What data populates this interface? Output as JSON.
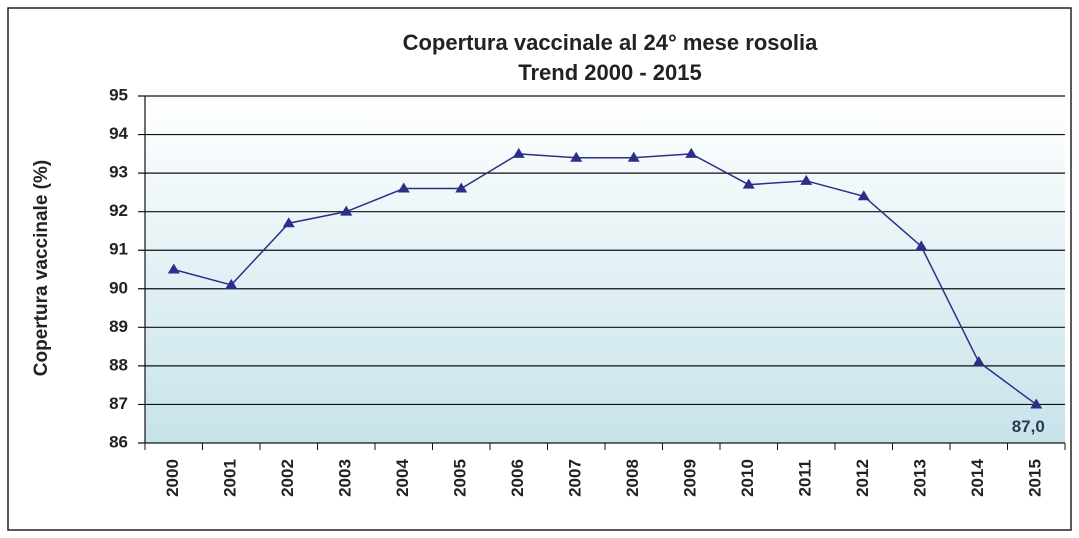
{
  "chart_data": {
    "type": "line",
    "title": "Copertura vaccinale al 24° mese rosolia",
    "subtitle": "Trend 2000 - 2015",
    "y_label": "Copertura vaccinale (%)",
    "categories": [
      "2000",
      "2001",
      "2002",
      "2003",
      "2004",
      "2005",
      "2006",
      "2007",
      "2008",
      "2009",
      "2010",
      "2011",
      "2012",
      "2013",
      "2014",
      "2015"
    ],
    "series": [
      {
        "color": "#2b2f87",
        "values": [
          90.5,
          90.1,
          91.7,
          92.0,
          92.6,
          92.6,
          93.5,
          93.4,
          93.4,
          93.5,
          92.7,
          92.8,
          92.4,
          91.1,
          88.1,
          87.0
        ],
        "value_labels": [
          null,
          null,
          null,
          null,
          null,
          null,
          null,
          null,
          null,
          null,
          null,
          null,
          null,
          null,
          null,
          "87,0"
        ]
      }
    ],
    "ylim": [
      86,
      95
    ],
    "yticks": [
      86,
      87,
      88,
      89,
      90,
      91,
      92,
      93,
      94,
      95
    ],
    "grid": true
  }
}
